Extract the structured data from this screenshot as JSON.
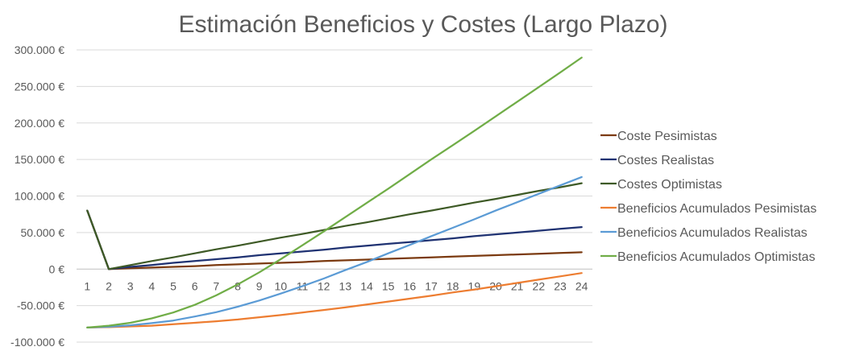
{
  "chart_data": {
    "type": "line",
    "title": "Estimación Beneficios y Costes (Largo Plazo)",
    "xlabel": "",
    "ylabel": "",
    "x": [
      "1",
      "2",
      "3",
      "4",
      "5",
      "6",
      "7",
      "8",
      "9",
      "10",
      "11",
      "12",
      "13",
      "14",
      "15",
      "16",
      "17",
      "18",
      "19",
      "20",
      "21",
      "22",
      "23",
      "24"
    ],
    "ylim": [
      -100000,
      300000
    ],
    "yticks": [
      300000,
      250000,
      200000,
      150000,
      100000,
      50000,
      0,
      -50000,
      -100000
    ],
    "ytick_labels": [
      "300.000 €",
      "250.000 €",
      "200.000 €",
      "150.000 €",
      "100.000 €",
      "50.000 €",
      "0 €",
      "-50.000 €",
      "-100.000 €"
    ],
    "grid": "horizontal",
    "legend_position": "right",
    "series": [
      {
        "name": "Coste Pesimistas",
        "color": "#7B3A10",
        "values": [
          80000,
          0,
          1000,
          2000,
          3000,
          4000,
          5500,
          6500,
          7500,
          8500,
          9500,
          11000,
          12000,
          13000,
          14000,
          15000,
          16000,
          17000,
          18000,
          19000,
          20000,
          21000,
          22000,
          23000
        ]
      },
      {
        "name": "Costes Realistas",
        "color": "#1F3272",
        "values": [
          80000,
          0,
          3000,
          5500,
          8500,
          11000,
          13500,
          16000,
          19000,
          21500,
          24000,
          26500,
          29500,
          32000,
          34500,
          37000,
          39500,
          42000,
          45000,
          47500,
          50000,
          52500,
          55000,
          57500
        ]
      },
      {
        "name": "Costes Optimistas",
        "color": "#3E5A26",
        "values": [
          80000,
          0,
          5500,
          11000,
          16000,
          21500,
          27000,
          32000,
          37500,
          43000,
          48000,
          53500,
          59000,
          64000,
          69500,
          75000,
          80000,
          85500,
          91000,
          96000,
          101500,
          107000,
          112000,
          117500
        ]
      },
      {
        "name": "Beneficios Acumulados Pesimistas",
        "color": "#ED7D31",
        "values": [
          -80000,
          -79500,
          -78500,
          -77500,
          -75500,
          -73500,
          -71500,
          -69000,
          -66000,
          -63000,
          -59500,
          -56000,
          -52500,
          -48500,
          -44500,
          -40500,
          -36500,
          -32000,
          -28000,
          -23500,
          -19000,
          -14500,
          -10000,
          -5500
        ]
      },
      {
        "name": "Beneficios Acumulados Realistas",
        "color": "#5B9BD5",
        "values": [
          -80000,
          -79000,
          -77000,
          -74000,
          -70500,
          -65000,
          -59000,
          -51500,
          -43000,
          -33500,
          -23500,
          -13000,
          -1500,
          9500,
          21500,
          33000,
          45000,
          56500,
          68000,
          80000,
          91500,
          103000,
          114500,
          126000
        ]
      },
      {
        "name": "Beneficios Acumulados Optimistas",
        "color": "#70AD47",
        "values": [
          -80000,
          -77500,
          -73500,
          -67500,
          -59500,
          -49000,
          -36000,
          -21000,
          -4500,
          13500,
          32500,
          51500,
          71000,
          90500,
          110000,
          130000,
          150000,
          169500,
          189000,
          209000,
          229000,
          249000,
          269000,
          289500
        ]
      }
    ]
  }
}
